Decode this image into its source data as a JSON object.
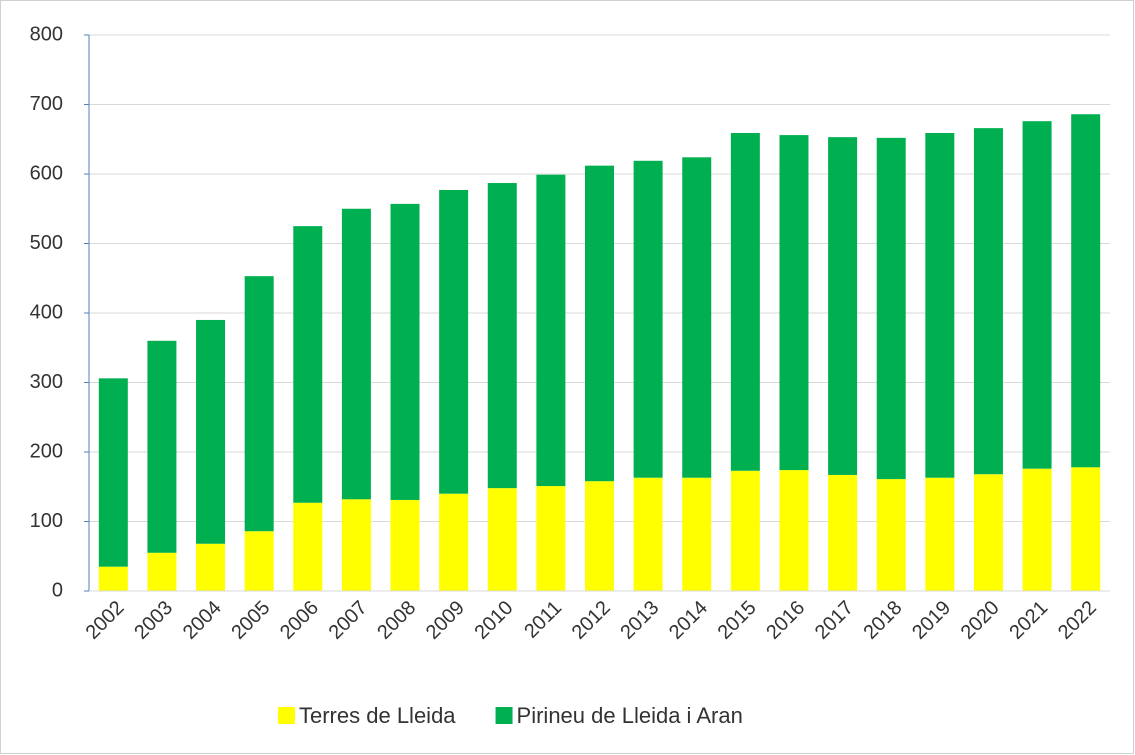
{
  "chart_data": {
    "type": "stacked_bar",
    "categories": [
      "2002",
      "2003",
      "2004",
      "2005",
      "2006",
      "2007",
      "2008",
      "2009",
      "2010",
      "2011",
      "2012",
      "2013",
      "2014",
      "2015",
      "2016",
      "2017",
      "2018",
      "2019",
      "2020",
      "2021",
      "2022"
    ],
    "series": [
      {
        "name": "Terres de Lleida",
        "color": "#ffff00",
        "values": [
          35,
          55,
          68,
          86,
          127,
          132,
          131,
          140,
          148,
          151,
          158,
          163,
          163,
          173,
          174,
          167,
          161,
          163,
          168,
          176,
          178
        ]
      },
      {
        "name": "Pirineu de Lleida i Aran",
        "color": "#00b050",
        "values": [
          271,
          305,
          322,
          367,
          398,
          418,
          426,
          437,
          439,
          448,
          454,
          456,
          461,
          486,
          482,
          486,
          491,
          496,
          498,
          500,
          508
        ]
      }
    ],
    "ylim": [
      0,
      800
    ],
    "yticks": [
      0,
      100,
      200,
      300,
      400,
      500,
      600,
      700,
      800
    ],
    "grid": true,
    "legend": "bottom"
  }
}
